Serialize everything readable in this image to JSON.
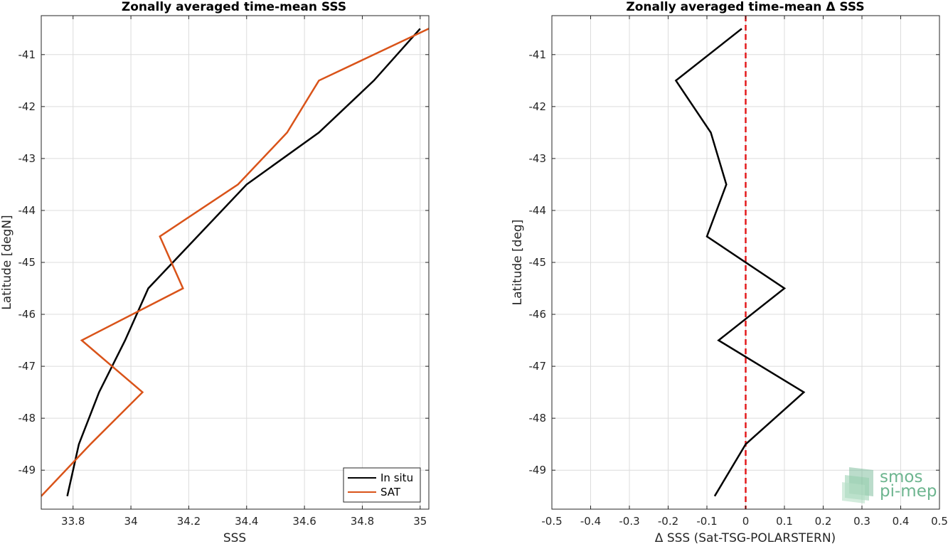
{
  "chart_data": [
    {
      "type": "line",
      "title": "Zonally averaged time-mean SSS",
      "xlabel": "SSS",
      "ylabel": "Latitude [degN]",
      "xlim": [
        33.69,
        35.03
      ],
      "ylim": [
        -49.75,
        -40.25
      ],
      "xticks": [
        33.8,
        34,
        34.2,
        34.4,
        34.6,
        34.8,
        35
      ],
      "xtick_labels": [
        "33.8",
        "34",
        "34.2",
        "34.4",
        "34.6",
        "34.8",
        "35"
      ],
      "yticks": [
        -41,
        -42,
        -43,
        -44,
        -45,
        -46,
        -47,
        -48,
        -49
      ],
      "ytick_labels": [
        "-41",
        "-42",
        "-43",
        "-44",
        "-45",
        "-46",
        "-47",
        "-48",
        "-49"
      ],
      "grid": true,
      "legend_position": "bottom-right",
      "series": [
        {
          "name": "In situ",
          "color": "#000000",
          "points": [
            [
              35.0,
              -40.5
            ],
            [
              34.84,
              -41.5
            ],
            [
              34.65,
              -42.5
            ],
            [
              34.4,
              -43.5
            ],
            [
              34.23,
              -44.5
            ],
            [
              34.06,
              -45.5
            ],
            [
              33.98,
              -46.5
            ],
            [
              33.89,
              -47.5
            ],
            [
              33.82,
              -48.5
            ],
            [
              33.78,
              -49.5
            ]
          ]
        },
        {
          "name": "SAT",
          "color": "#d95319",
          "points": [
            [
              35.03,
              -40.5
            ],
            [
              34.65,
              -41.5
            ],
            [
              34.54,
              -42.5
            ],
            [
              34.37,
              -43.5
            ],
            [
              34.1,
              -44.5
            ],
            [
              34.18,
              -45.5
            ],
            [
              33.83,
              -46.5
            ],
            [
              34.04,
              -47.5
            ],
            [
              33.86,
              -48.5
            ],
            [
              33.69,
              -49.5
            ]
          ]
        }
      ]
    },
    {
      "type": "line",
      "title": "Zonally averaged time-mean Δ SSS",
      "xlabel": "Δ SSS (Sat-TSG-POLARSTERN)",
      "ylabel": "Latitude [deg]",
      "xlim": [
        -0.5,
        0.5
      ],
      "ylim": [
        -49.75,
        -40.25
      ],
      "xticks": [
        -0.5,
        -0.4,
        -0.3,
        -0.2,
        -0.1,
        0,
        0.1,
        0.2,
        0.3,
        0.4,
        0.5
      ],
      "xtick_labels": [
        "-0.5",
        "-0.4",
        "-0.3",
        "-0.2",
        "-0.1",
        "0",
        "0.1",
        "0.2",
        "0.3",
        "0.4",
        "0.5"
      ],
      "yticks": [
        -41,
        -42,
        -43,
        -44,
        -45,
        -46,
        -47,
        -48,
        -49
      ],
      "ytick_labels": [
        "-41",
        "-42",
        "-43",
        "-44",
        "-45",
        "-46",
        "-47",
        "-48",
        "-49"
      ],
      "grid": true,
      "reference_line": {
        "x": 0,
        "color": "#e41a1c",
        "style": "dashed"
      },
      "series": [
        {
          "color": "#000000",
          "points": [
            [
              -0.01,
              -40.5
            ],
            [
              -0.18,
              -41.5
            ],
            [
              -0.09,
              -42.5
            ],
            [
              -0.05,
              -43.5
            ],
            [
              -0.1,
              -44.5
            ],
            [
              0.1,
              -45.5
            ],
            [
              -0.07,
              -46.5
            ],
            [
              0.15,
              -47.5
            ],
            [
              0.0,
              -48.5
            ],
            [
              -0.08,
              -49.5
            ]
          ]
        }
      ]
    }
  ],
  "logo": {
    "line1": "smos",
    "line2": "pi-mep",
    "color": "#6db58f"
  }
}
